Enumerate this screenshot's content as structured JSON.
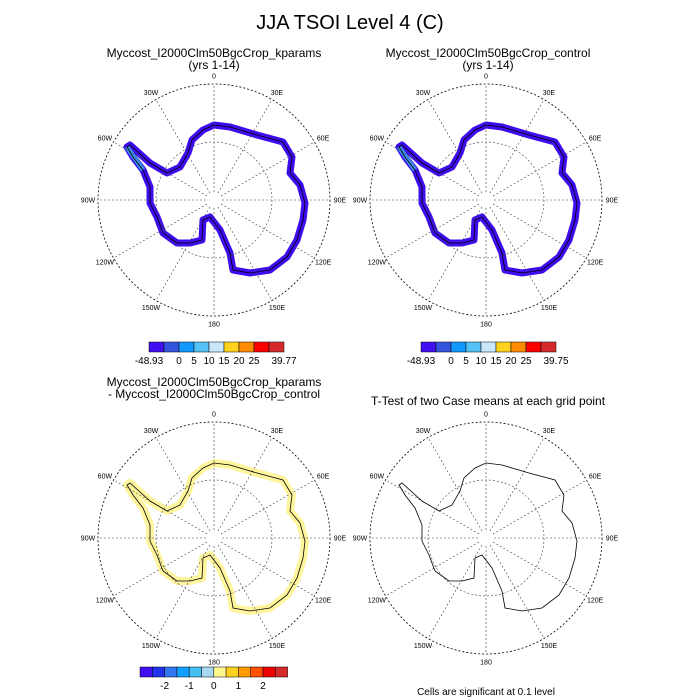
{
  "title": "JJA TSOI Level 4 (C)",
  "colors": {
    "coast": "#000000",
    "grid": "#444444",
    "main_band": "#3d0df0",
    "main_band_light": "#3a8ee8",
    "diff_band": "#fff59d"
  },
  "lon_labels": [
    "0",
    "30E",
    "60E",
    "90E",
    "120E",
    "150E",
    "180",
    "150W",
    "120W",
    "90W",
    "60W",
    "30W"
  ],
  "panels": [
    {
      "title_line1": "Myccost_I2000Clm50BgcCrop_kparams",
      "title_line2": "(yrs 1-14)",
      "fill": "main",
      "colorbar": {
        "colors": [
          "#4010f0",
          "#3355dd",
          "#1199ff",
          "#55c4f5",
          "#c8e8fa",
          "#ffd21f",
          "#ff8c00",
          "#ff0000",
          "#d42a2a"
        ],
        "labels": [
          "-48.93",
          "0",
          "5",
          "10",
          "15",
          "20",
          "25",
          "39.77"
        ]
      }
    },
    {
      "title_line1": "Myccost_I2000Clm50BgcCrop_control",
      "title_line2": "(yrs 1-14)",
      "fill": "main",
      "colorbar": {
        "colors": [
          "#4010f0",
          "#3355dd",
          "#1199ff",
          "#55c4f5",
          "#c8e8fa",
          "#ffd21f",
          "#ff8c00",
          "#ff0000",
          "#d42a2a"
        ],
        "labels": [
          "-48.93",
          "0",
          "5",
          "10",
          "15",
          "20",
          "25",
          "39.75"
        ]
      }
    },
    {
      "title_line1": "Myccost_I2000Clm50BgcCrop_kparams",
      "title_line2": "- Myccost_I2000Clm50BgcCrop_control",
      "fill": "diff",
      "colorbar": {
        "colors": [
          "#4010f0",
          "#2233ee",
          "#3377ee",
          "#11a0ff",
          "#44c0f5",
          "#a8d8f0",
          "#fff68f",
          "#ffd21f",
          "#ff9a00",
          "#ff5000",
          "#ee0000",
          "#d42a2a"
        ],
        "labels": [
          "-2",
          "-1",
          "0",
          "1",
          "2"
        ]
      }
    },
    {
      "title_line1": "T-Test of two Case means at each grid point",
      "title_line2": "",
      "fill": "none",
      "footer": "Cells are significant at 0.1 level"
    }
  ]
}
